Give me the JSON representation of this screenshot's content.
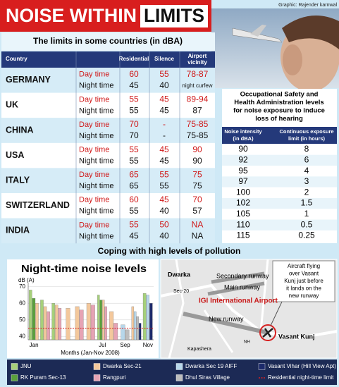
{
  "header": {
    "title_a": "NOISE WITHIN",
    "title_b": "LIMITS",
    "credit": "Graphic: Rajender karnwal"
  },
  "limits_table": {
    "title": "The limits in some countries (in dBA)",
    "columns": [
      "Country",
      "Residential",
      "Silence",
      [
        "Airport",
        "vicinity"
      ]
    ],
    "rows": [
      {
        "country": "GERMANY",
        "periods": [
          [
            "Day time",
            "60",
            "55",
            "78-87"
          ],
          [
            "Night time",
            "45",
            "40",
            "night curfew"
          ]
        ]
      },
      {
        "country": "UK",
        "periods": [
          [
            "Day time",
            "55",
            "45",
            "89-94"
          ],
          [
            "Night time",
            "55",
            "45",
            "87"
          ]
        ]
      },
      {
        "country": "CHINA",
        "periods": [
          [
            "Day time",
            "70",
            "-",
            "75-85"
          ],
          [
            "Night time",
            "70",
            "-",
            "75-85"
          ]
        ]
      },
      {
        "country": "USA",
        "periods": [
          [
            "Day time",
            "55",
            "45",
            "90"
          ],
          [
            "Night time",
            "55",
            "45",
            "90"
          ]
        ]
      },
      {
        "country": "ITALY",
        "periods": [
          [
            "Day time",
            "65",
            "55",
            "75"
          ],
          [
            "Night time",
            "65",
            "55",
            "75"
          ]
        ]
      },
      {
        "country": "SWITZERLAND",
        "periods": [
          [
            "Day time",
            "60",
            "45",
            "70"
          ],
          [
            "Night time",
            "55",
            "40",
            "57"
          ]
        ]
      },
      {
        "country": "INDIA",
        "periods": [
          [
            "Day time",
            "55",
            "50",
            "NA"
          ],
          [
            "Night time",
            "45",
            "40",
            "NA"
          ]
        ]
      }
    ]
  },
  "osha_table": {
    "title": [
      "Occupational Safety and",
      "Health Administration levels",
      "for noise exposure to induce",
      "loss of hearing"
    ],
    "columns": [
      [
        "Noise intensity",
        "(in dBA)"
      ],
      [
        "Continuous exposure",
        "limit (in hours)"
      ]
    ],
    "rows": [
      [
        90,
        8
      ],
      [
        92,
        6
      ],
      [
        95,
        4
      ],
      [
        97,
        3
      ],
      [
        100,
        2
      ],
      [
        102,
        1.5
      ],
      [
        105,
        1
      ],
      [
        110,
        0.5
      ],
      [
        115,
        0.25
      ]
    ]
  },
  "section_title": "Coping with high levels of pollution",
  "chart_data": {
    "type": "bar",
    "title": "Night-time noise levels",
    "y_label": "dB (A)",
    "x_label": "Months (Jan-Nov 2008)",
    "categories": [
      "Jan",
      null,
      null,
      null,
      null,
      null,
      "Jul",
      null,
      "Sep",
      null,
      "Nov"
    ],
    "ylim": [
      38,
      72
    ],
    "yticks": [
      40,
      50,
      60,
      70
    ],
    "grid": true,
    "series": [
      {
        "name": "JNU",
        "color": "#a6d07a",
        "values": [
          68,
          62,
          60,
          null,
          null,
          null,
          65,
          null,
          null,
          null,
          66
        ]
      },
      {
        "name": "RK Puram Sec-13",
        "color": "#5aa03c",
        "values": [
          63,
          null,
          null,
          null,
          null,
          null,
          62,
          null,
          null,
          null,
          null
        ]
      },
      {
        "name": "Dwarka Sec-21",
        "color": "#f3c89c",
        "values": [
          60,
          58,
          59,
          57,
          58,
          60,
          62,
          55,
          null,
          58,
          null
        ]
      },
      {
        "name": "Rangpuri",
        "color": "#e6a3b4",
        "values": [
          null,
          55,
          57,
          null,
          56,
          59,
          58,
          48,
          null,
          null,
          null
        ]
      },
      {
        "name": "Dwarka Sec 19 AIFF",
        "color": "#b7d7ea",
        "values": [
          null,
          null,
          null,
          null,
          null,
          null,
          null,
          null,
          47,
          55,
          65
        ]
      },
      {
        "name": "Dhul Siras Village",
        "color": "#bdbdbd",
        "values": [
          null,
          null,
          null,
          null,
          null,
          null,
          null,
          null,
          44,
          52,
          null
        ]
      },
      {
        "name": "Vasant Vihar (Hill View Apt)",
        "color": "#1c2a6b",
        "values": [
          null,
          null,
          null,
          null,
          null,
          null,
          null,
          null,
          null,
          48,
          60
        ]
      }
    ],
    "reference_line": {
      "name": "Residential night-time limit",
      "value": 45,
      "color": "#d62020"
    }
  },
  "map": {
    "dwarka": "Dwarka",
    "sec20": "Sec-20",
    "secondary_runway": "Secondary runway",
    "main_runway": "Main runway",
    "airport": "IGI International Airport",
    "new_runway": "New runway",
    "nh": "NH",
    "kapashera": "Kapashera",
    "vasant_kunj": "Vasant Kunj",
    "note": [
      "Aircraft flying",
      "over Vasant",
      "Kunj just before",
      "it lands on the",
      "new runway"
    ]
  }
}
